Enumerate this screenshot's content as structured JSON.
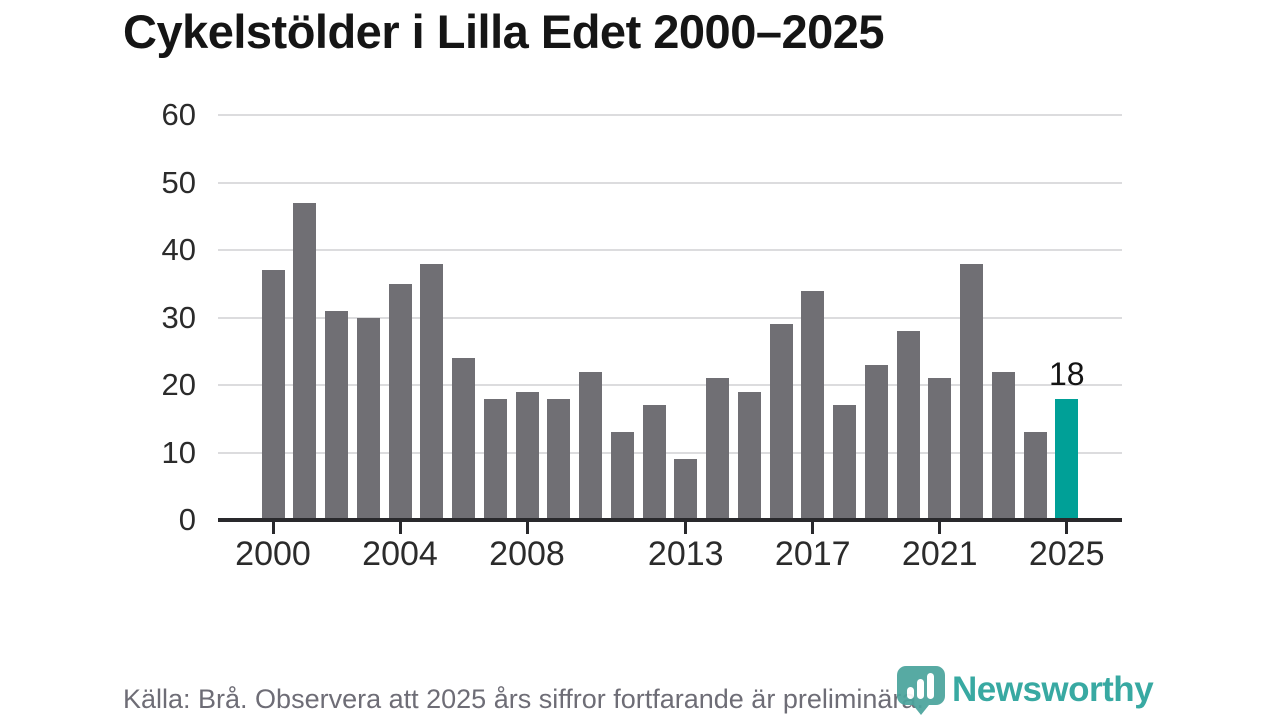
{
  "page": {
    "title": "Cykelstölder i Lilla Edet 2000–2025"
  },
  "footer": {
    "source_note": "Källa: Brå. Observera att 2025 års siffror fortfarande är preliminära."
  },
  "branding": {
    "wordmark": "Newsworthy",
    "icon": "newsworthy-pin-barchart-icon",
    "wordmark_color": "#2aa39b",
    "icon_color": "#4ba49d"
  },
  "chart_data": {
    "type": "bar",
    "title": "Cykelstölder i Lilla Edet 2000–2025",
    "x": [
      2000,
      2001,
      2002,
      2003,
      2004,
      2005,
      2006,
      2007,
      2008,
      2009,
      2010,
      2011,
      2012,
      2013,
      2014,
      2015,
      2016,
      2017,
      2018,
      2019,
      2020,
      2021,
      2022,
      2023,
      2024,
      2025
    ],
    "values": [
      37,
      47,
      31,
      30,
      35,
      38,
      24,
      18,
      19,
      18,
      22,
      13,
      17,
      9,
      21,
      19,
      29,
      34,
      17,
      23,
      28,
      21,
      38,
      22,
      13,
      18
    ],
    "xlabel": "",
    "ylabel": "",
    "ylim": [
      0,
      60
    ],
    "y_ticks": [
      0,
      10,
      20,
      30,
      40,
      50,
      60
    ],
    "x_tick_years": [
      2000,
      2004,
      2008,
      2013,
      2017,
      2021,
      2025
    ],
    "grid": "horizontal",
    "legend": "none",
    "bar_color": "#706f74",
    "highlight": {
      "year": 2025,
      "value": 18,
      "value_label": "18",
      "color": "#00a097"
    }
  }
}
